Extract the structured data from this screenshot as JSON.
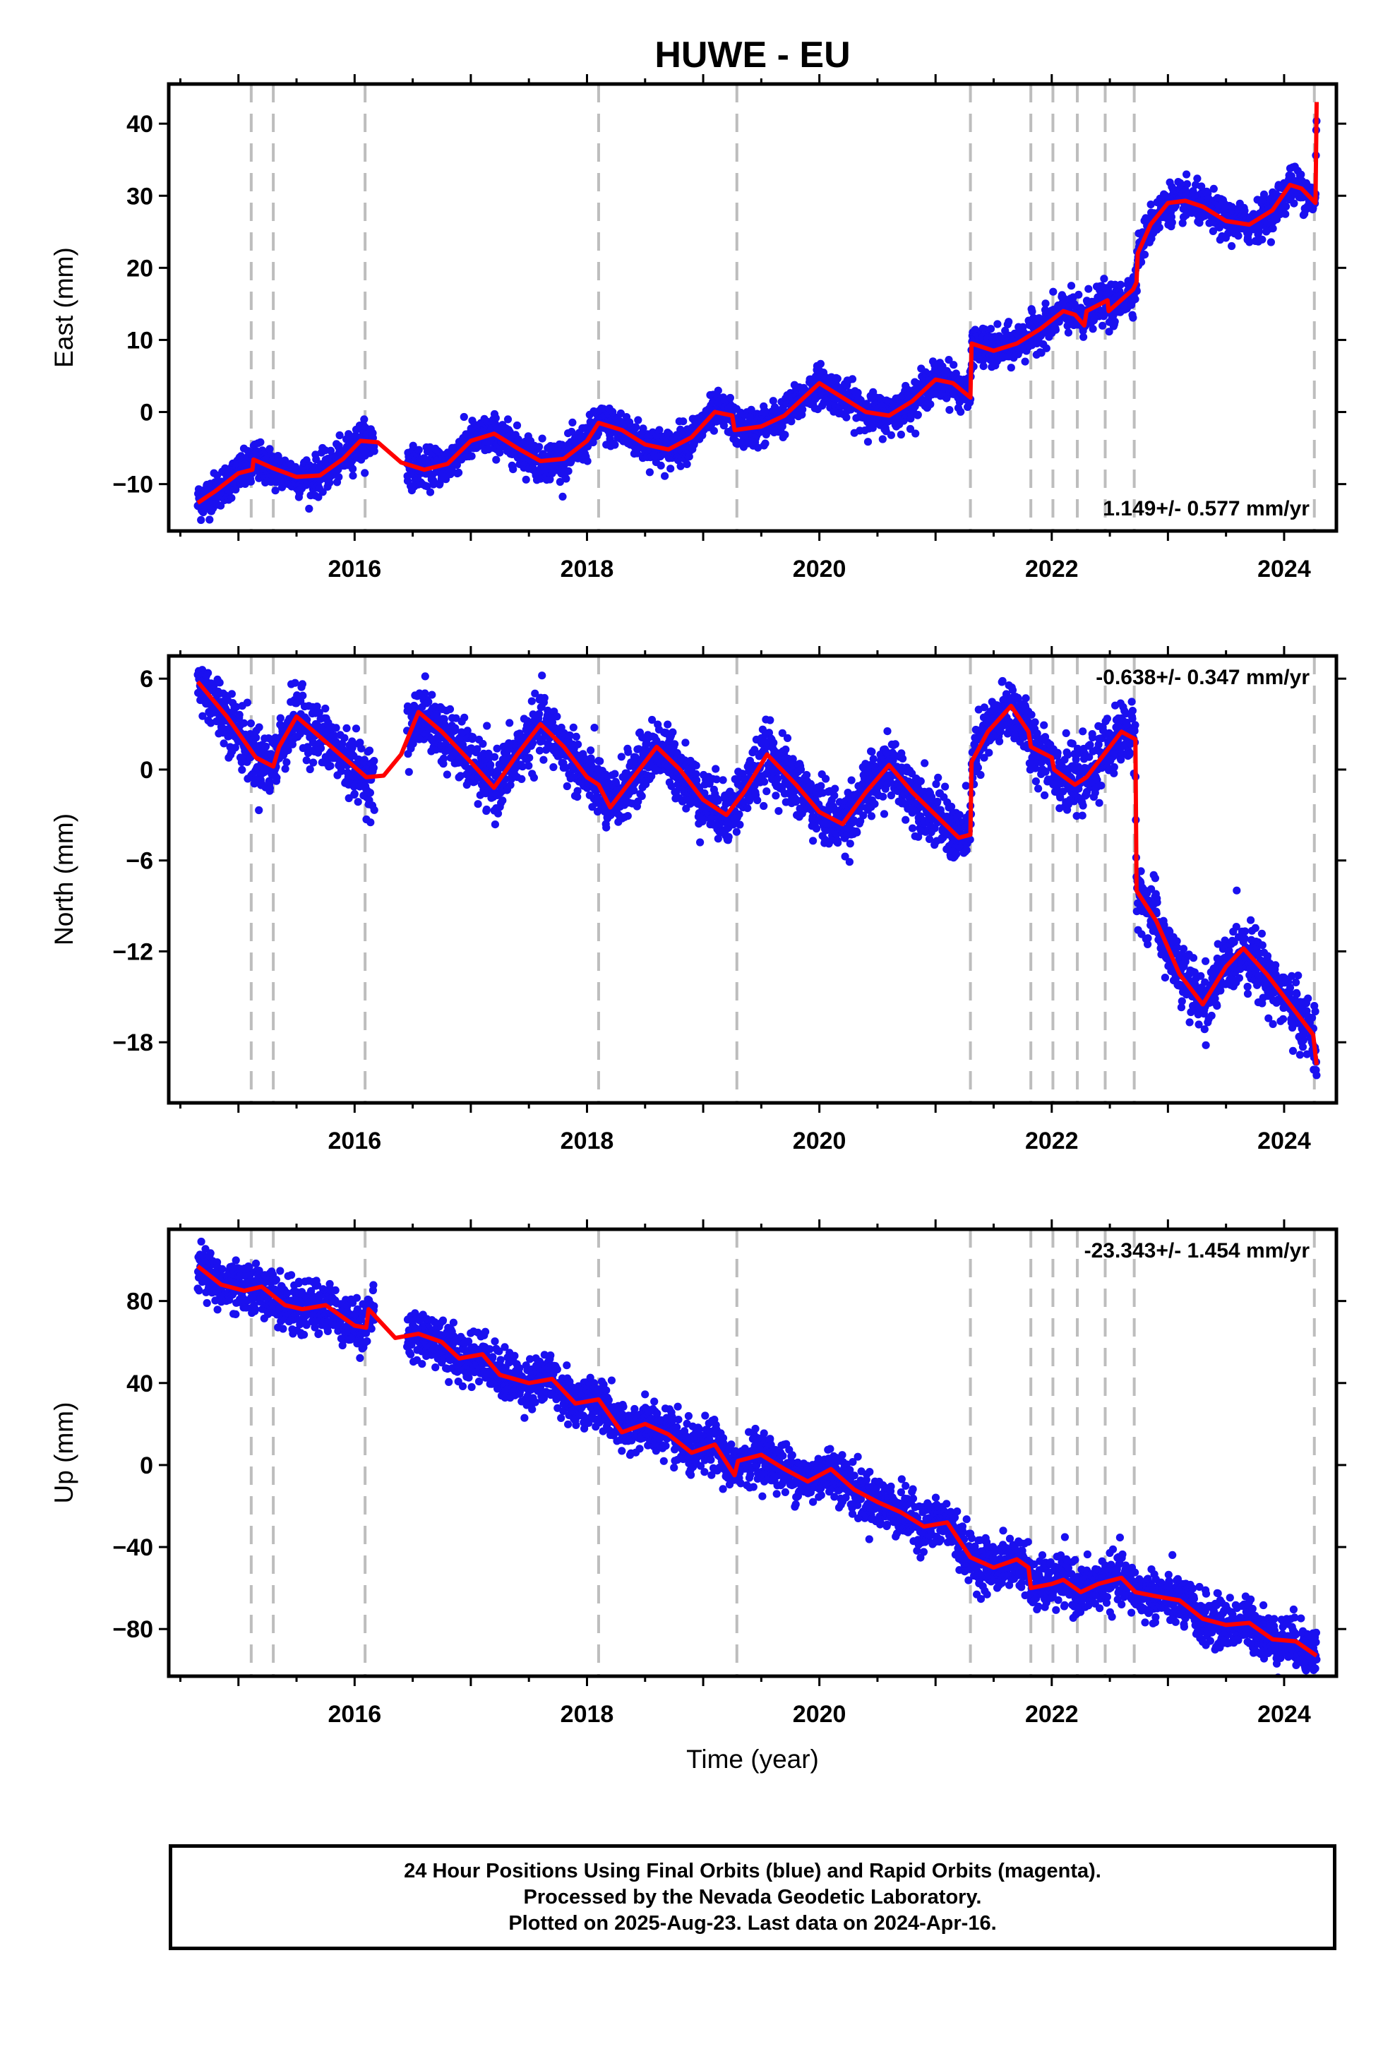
{
  "title": "HUWE - EU",
  "colors": {
    "data": "#1a10f0",
    "model": "#ff0000",
    "steps": "#bdbdbd",
    "frame": "#000000"
  },
  "chart_data": [
    {
      "type": "scatter",
      "panel": "east",
      "ylabel": "East (mm)",
      "xlabel": "",
      "xlim": [
        2014.4,
        2024.45
      ],
      "ylim": [
        -16.5,
        45.5
      ],
      "yticks": [
        -10,
        0,
        10,
        20,
        30,
        40
      ],
      "xticks": [
        2016,
        2018,
        2020,
        2022,
        2024
      ],
      "rate": "1.149+/- 0.577 mm/yr",
      "rate_position": "bottom-right",
      "model": [
        [
          2014.65,
          -12.6
        ],
        [
          2014.8,
          -11.0
        ],
        [
          2015.0,
          -8.5
        ],
        [
          2015.12,
          -8.0
        ],
        [
          2015.13,
          -6.6
        ],
        [
          2015.3,
          -7.8
        ],
        [
          2015.5,
          -9.0
        ],
        [
          2015.7,
          -8.8
        ],
        [
          2015.9,
          -6.5
        ],
        [
          2016.05,
          -4.0
        ],
        [
          2016.2,
          -4.2
        ],
        [
          2016.4,
          -7.0
        ],
        [
          2016.6,
          -8.0
        ],
        [
          2016.8,
          -7.2
        ],
        [
          2017.0,
          -4.0
        ],
        [
          2017.2,
          -3.0
        ],
        [
          2017.4,
          -5.0
        ],
        [
          2017.6,
          -6.8
        ],
        [
          2017.8,
          -6.5
        ],
        [
          2018.0,
          -4.0
        ],
        [
          2018.1,
          -1.5
        ],
        [
          2018.3,
          -2.5
        ],
        [
          2018.5,
          -4.5
        ],
        [
          2018.7,
          -5.2
        ],
        [
          2018.9,
          -3.5
        ],
        [
          2019.1,
          0.0
        ],
        [
          2019.25,
          -0.5
        ],
        [
          2019.27,
          -2.5
        ],
        [
          2019.5,
          -2.0
        ],
        [
          2019.7,
          -0.5
        ],
        [
          2019.9,
          2.5
        ],
        [
          2020.0,
          4.0
        ],
        [
          2020.2,
          2.0
        ],
        [
          2020.4,
          0.0
        ],
        [
          2020.6,
          -0.5
        ],
        [
          2020.8,
          1.5
        ],
        [
          2021.0,
          4.5
        ],
        [
          2021.15,
          4.0
        ],
        [
          2021.3,
          2.0
        ],
        [
          2021.31,
          9.5
        ],
        [
          2021.5,
          8.5
        ],
        [
          2021.7,
          9.5
        ],
        [
          2021.9,
          11.5
        ],
        [
          2022.1,
          14.0
        ],
        [
          2022.2,
          13.5
        ],
        [
          2022.28,
          12.0
        ],
        [
          2022.3,
          14.0
        ],
        [
          2022.48,
          15.5
        ],
        [
          2022.49,
          14.0
        ],
        [
          2022.7,
          17.0
        ],
        [
          2022.73,
          18.0
        ],
        [
          2022.74,
          22.0
        ],
        [
          2022.85,
          26.0
        ],
        [
          2023.0,
          29.0
        ],
        [
          2023.15,
          29.3
        ],
        [
          2023.3,
          28.5
        ],
        [
          2023.5,
          26.5
        ],
        [
          2023.7,
          26.0
        ],
        [
          2023.9,
          28.0
        ],
        [
          2024.05,
          31.5
        ],
        [
          2024.15,
          31.0
        ],
        [
          2024.27,
          29.0
        ],
        [
          2024.28,
          43.0
        ]
      ],
      "scatter_sigma": 1.3
    },
    {
      "type": "scatter",
      "panel": "north",
      "ylabel": "North (mm)",
      "xlabel": "",
      "xlim": [
        2014.4,
        2024.45
      ],
      "ylim": [
        -22,
        7.5
      ],
      "yticks": [
        -18,
        -12,
        -6,
        0,
        6
      ],
      "xticks": [
        2016,
        2018,
        2020,
        2022,
        2024
      ],
      "rate": "-0.638+/- 0.347 mm/yr",
      "rate_position": "top-right",
      "model": [
        [
          2014.65,
          5.8
        ],
        [
          2014.9,
          3.5
        ],
        [
          2015.15,
          0.8
        ],
        [
          2015.3,
          0.2
        ],
        [
          2015.35,
          1.5
        ],
        [
          2015.5,
          3.5
        ],
        [
          2015.8,
          1.5
        ],
        [
          2016.1,
          -0.5
        ],
        [
          2016.25,
          -0.4
        ],
        [
          2016.4,
          1.0
        ],
        [
          2016.55,
          3.8
        ],
        [
          2016.75,
          2.5
        ],
        [
          2017.0,
          0.5
        ],
        [
          2017.2,
          -1.2
        ],
        [
          2017.4,
          1.0
        ],
        [
          2017.6,
          3.0
        ],
        [
          2017.8,
          1.5
        ],
        [
          2018.0,
          -0.5
        ],
        [
          2018.1,
          -1.0
        ],
        [
          2018.2,
          -2.5
        ],
        [
          2018.4,
          -0.5
        ],
        [
          2018.6,
          1.5
        ],
        [
          2018.8,
          0.0
        ],
        [
          2019.0,
          -2.0
        ],
        [
          2019.2,
          -3.0
        ],
        [
          2019.35,
          -1.5
        ],
        [
          2019.55,
          1.0
        ],
        [
          2019.8,
          -1.0
        ],
        [
          2020.0,
          -2.8
        ],
        [
          2020.2,
          -3.6
        ],
        [
          2020.4,
          -1.5
        ],
        [
          2020.6,
          0.3
        ],
        [
          2020.8,
          -1.5
        ],
        [
          2021.0,
          -3.0
        ],
        [
          2021.2,
          -4.5
        ],
        [
          2021.3,
          -4.3
        ],
        [
          2021.31,
          0.5
        ],
        [
          2021.45,
          2.5
        ],
        [
          2021.65,
          4.2
        ],
        [
          2021.8,
          2.5
        ],
        [
          2021.82,
          1.5
        ],
        [
          2022.0,
          0.8
        ],
        [
          2022.02,
          0.0
        ],
        [
          2022.2,
          -1.0
        ],
        [
          2022.3,
          -0.5
        ],
        [
          2022.45,
          1.0
        ],
        [
          2022.6,
          2.5
        ],
        [
          2022.72,
          2.0
        ],
        [
          2022.73,
          -8.0
        ],
        [
          2022.9,
          -10.0
        ],
        [
          2023.1,
          -13.5
        ],
        [
          2023.3,
          -15.5
        ],
        [
          2023.5,
          -13.0
        ],
        [
          2023.65,
          -11.8
        ],
        [
          2023.85,
          -13.5
        ],
        [
          2024.05,
          -15.5
        ],
        [
          2024.25,
          -17.5
        ],
        [
          2024.28,
          -19.5
        ]
      ],
      "scatter_sigma": 1.0
    },
    {
      "type": "scatter",
      "panel": "up",
      "ylabel": "Up (mm)",
      "xlabel": "Time (year)",
      "xlim": [
        2014.4,
        2024.45
      ],
      "ylim": [
        -103,
        115
      ],
      "yticks": [
        -80,
        -40,
        0,
        40,
        80
      ],
      "xticks": [
        2016,
        2018,
        2020,
        2022,
        2024
      ],
      "rate": "-23.343+/- 1.454 mm/yr",
      "rate_position": "top-right",
      "model": [
        [
          2014.65,
          97
        ],
        [
          2014.85,
          88
        ],
        [
          2015.05,
          85
        ],
        [
          2015.2,
          87
        ],
        [
          2015.4,
          78
        ],
        [
          2015.55,
          76
        ],
        [
          2015.75,
          78
        ],
        [
          2016.0,
          68
        ],
        [
          2016.1,
          67
        ],
        [
          2016.12,
          76
        ],
        [
          2016.35,
          62
        ],
        [
          2016.55,
          64
        ],
        [
          2016.75,
          60
        ],
        [
          2016.9,
          52
        ],
        [
          2017.1,
          54
        ],
        [
          2017.25,
          44
        ],
        [
          2017.5,
          40
        ],
        [
          2017.7,
          42
        ],
        [
          2017.9,
          30
        ],
        [
          2018.1,
          32
        ],
        [
          2018.3,
          16
        ],
        [
          2018.5,
          20
        ],
        [
          2018.7,
          15
        ],
        [
          2018.9,
          6
        ],
        [
          2019.1,
          10
        ],
        [
          2019.27,
          -5
        ],
        [
          2019.3,
          2
        ],
        [
          2019.5,
          5
        ],
        [
          2019.7,
          -2
        ],
        [
          2019.9,
          -8
        ],
        [
          2020.1,
          -2
        ],
        [
          2020.3,
          -12
        ],
        [
          2020.5,
          -18
        ],
        [
          2020.7,
          -23
        ],
        [
          2020.9,
          -30
        ],
        [
          2021.1,
          -28
        ],
        [
          2021.3,
          -45
        ],
        [
          2021.5,
          -50
        ],
        [
          2021.7,
          -46
        ],
        [
          2021.8,
          -50
        ],
        [
          2021.82,
          -60
        ],
        [
          2022.0,
          -58
        ],
        [
          2022.1,
          -56
        ],
        [
          2022.25,
          -62
        ],
        [
          2022.4,
          -58
        ],
        [
          2022.6,
          -55
        ],
        [
          2022.72,
          -62
        ],
        [
          2022.9,
          -64
        ],
        [
          2023.1,
          -66
        ],
        [
          2023.3,
          -75
        ],
        [
          2023.5,
          -78
        ],
        [
          2023.7,
          -77
        ],
        [
          2023.9,
          -85
        ],
        [
          2024.1,
          -86
        ],
        [
          2024.28,
          -93
        ]
      ],
      "scatter_sigma": 6
    }
  ],
  "step_epochs": [
    2015.11,
    2015.3,
    2016.09,
    2018.1,
    2019.29,
    2021.3,
    2021.82,
    2022.01,
    2022.22,
    2022.46,
    2022.71,
    2024.26
  ],
  "footer": {
    "line1": "24 Hour Positions Using Final Orbits (blue) and Rapid Orbits (magenta).",
    "line2": "Processed by the Nevada Geodetic Laboratory.",
    "line3": "Plotted on 2025-Aug-23. Last data on 2024-Apr-16."
  }
}
